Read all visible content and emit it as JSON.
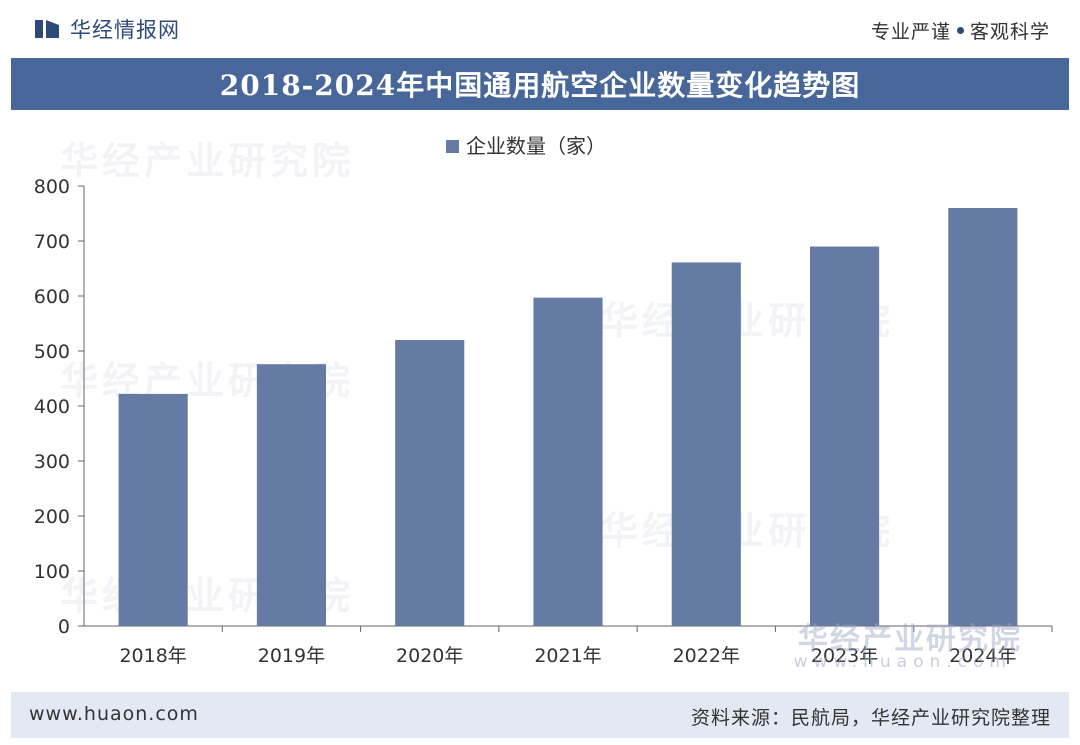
{
  "header": {
    "brand": "华经情报网",
    "slogan_left": "专业严谨",
    "slogan_right": "客观科学"
  },
  "title": "2018-2024年中国通用航空企业数量变化趋势图",
  "footer": {
    "url": "www.huaon.com",
    "source": "资料来源：民航局，华经产业研究院整理"
  },
  "watermark": {
    "text": "华经产业研究院",
    "url": "www.huaon.com"
  },
  "colors": {
    "bar": "#667ba4",
    "title_bg": "#47669a",
    "footer_bg": "#e3e9f3"
  },
  "chart_data": {
    "type": "bar",
    "title": "2018-2024年中国通用航空企业数量变化趋势图",
    "categories": [
      "2018年",
      "2019年",
      "2020年",
      "2021年",
      "2022年",
      "2023年",
      "2024年"
    ],
    "series": [
      {
        "name": "企业数量（家）",
        "values": [
          422,
          476,
          520,
          597,
          661,
          690,
          760
        ]
      }
    ],
    "yticks": [
      0,
      100,
      200,
      300,
      400,
      500,
      600,
      700,
      800
    ],
    "ylim": [
      0,
      800
    ],
    "xlabel": "",
    "ylabel": "",
    "legend": "top-center",
    "grid": false
  }
}
